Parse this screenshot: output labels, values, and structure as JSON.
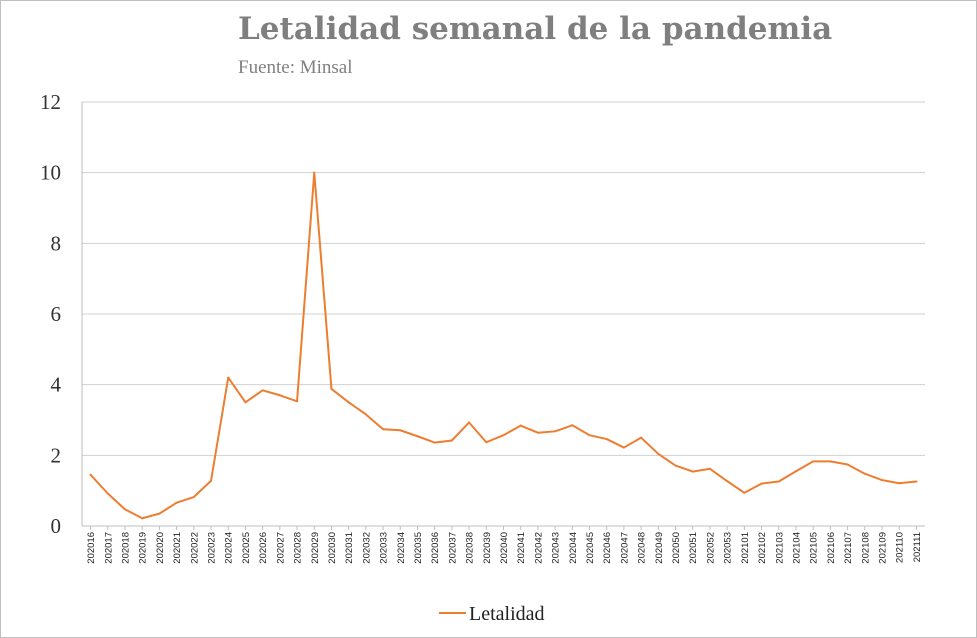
{
  "chart_data": {
    "type": "line",
    "title": "Letalidad semanal de la pandemia",
    "subtitle": "Fuente: Minsal",
    "xlabel": "",
    "ylabel": "",
    "ylim": [
      0,
      12
    ],
    "yticks": [
      0,
      2,
      4,
      6,
      8,
      10,
      12
    ],
    "grid": true,
    "legend": "bottom-center",
    "categories": [
      "202016",
      "202017",
      "202018",
      "202019",
      "202020",
      "202021",
      "202022",
      "202023",
      "202024",
      "202025",
      "202026",
      "202027",
      "202028",
      "202029",
      "202030",
      "202031",
      "202032",
      "202033",
      "202034",
      "202035",
      "202036",
      "202037",
      "202038",
      "202039",
      "202040",
      "202041",
      "202042",
      "202043",
      "202044",
      "202045",
      "202046",
      "202047",
      "202048",
      "202049",
      "202050",
      "202051",
      "202052",
      "202053",
      "202101",
      "202102",
      "202103",
      "202104",
      "202105",
      "202106",
      "202107",
      "202108",
      "202109",
      "202110",
      "202111"
    ],
    "series": [
      {
        "name": "Letalidad",
        "color": "#ed7d31",
        "values": [
          1.45,
          0.92,
          0.47,
          0.22,
          0.35,
          0.66,
          0.82,
          1.28,
          4.2,
          3.5,
          3.84,
          3.7,
          3.53,
          10.0,
          3.88,
          3.5,
          3.16,
          2.74,
          2.71,
          2.54,
          2.36,
          2.42,
          2.93,
          2.37,
          2.57,
          2.84,
          2.64,
          2.68,
          2.85,
          2.57,
          2.46,
          2.22,
          2.5,
          2.04,
          1.71,
          1.54,
          1.62,
          1.27,
          0.94,
          1.2,
          1.26,
          1.55,
          1.83,
          1.83,
          1.74,
          1.48,
          1.3,
          1.21,
          1.26
        ]
      }
    ]
  }
}
